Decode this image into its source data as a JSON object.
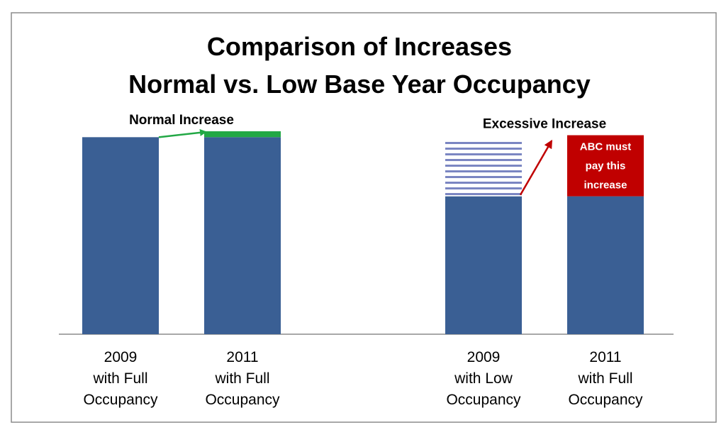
{
  "chart_data": {
    "type": "bar",
    "title": "Comparison of Increases",
    "subtitle": "Normal vs. Low Base Year Occupancy",
    "groups": [
      {
        "annotation": "Normal Increase",
        "bars": [
          {
            "label": [
              "2009",
              "with Full",
              "Occupancy"
            ],
            "value": 100,
            "increase": 0,
            "hatched": 0
          },
          {
            "label": [
              "2011",
              "with Full",
              "Occupancy"
            ],
            "value": 100,
            "increase": 3,
            "hatched": 0
          }
        ]
      },
      {
        "annotation": "Excessive Increase",
        "bars": [
          {
            "label": [
              "2009",
              "with Low",
              "Occupancy"
            ],
            "value": 70,
            "increase": 0,
            "hatched": 28
          },
          {
            "label": [
              "2011",
              "with Full",
              "Occupancy"
            ],
            "value": 70,
            "increase": 31,
            "hatched": 0
          }
        ],
        "callout": [
          "ABC must",
          "pay this",
          "increase"
        ]
      }
    ],
    "ylim": [
      0,
      103
    ],
    "grid": false,
    "legend": "none",
    "colors": {
      "bar": "#3a5f94",
      "normal_increase": "#22a845",
      "excessive_increase": "#c00000",
      "hatch": "#7b86c2",
      "normal_arrow": "#22a845",
      "excessive_arrow": "#c00000",
      "frame": "#8c8c8c",
      "axis": "#8c8c8c"
    }
  }
}
